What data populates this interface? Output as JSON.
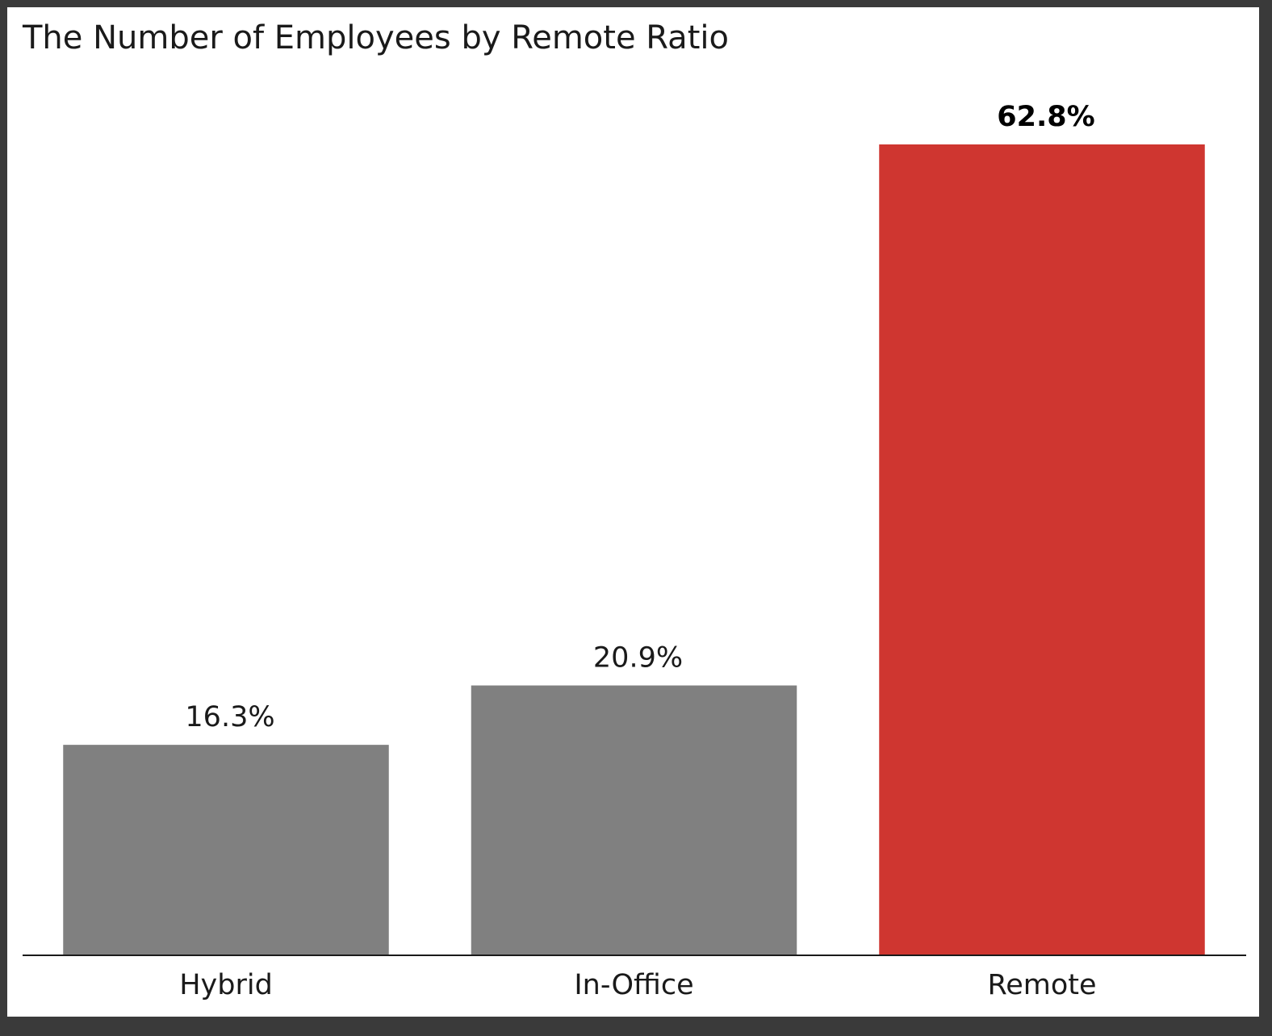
{
  "chart_data": {
    "type": "bar",
    "title": "The Number of Employees by Remote Ratio",
    "xlabel": "",
    "ylabel": "",
    "categories": [
      "Hybrid",
      "In-Office",
      "Remote"
    ],
    "values": [
      16.3,
      20.9,
      62.8
    ],
    "value_labels": [
      "16.3%",
      "20.9%",
      "62.8%"
    ],
    "highlight_index": 2,
    "ylim": [
      0,
      62.8
    ],
    "grid": false,
    "legend": "none",
    "colors": {
      "default": "#808080",
      "highlight": "#cf3630",
      "axis": "#1a1a1a"
    }
  }
}
